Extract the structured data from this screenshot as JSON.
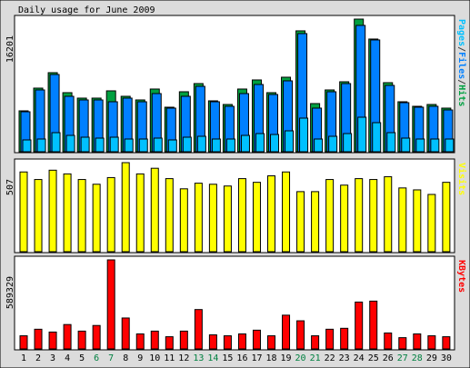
{
  "chart_data": {
    "type": "bar",
    "title": "Daily usage for June 2009",
    "categories": [
      "1",
      "2",
      "3",
      "4",
      "5",
      "6",
      "7",
      "8",
      "9",
      "10",
      "11",
      "12",
      "13",
      "14",
      "15",
      "16",
      "17",
      "18",
      "19",
      "20",
      "21",
      "22",
      "23",
      "24",
      "25",
      "26",
      "27",
      "28",
      "29",
      "30"
    ],
    "category_colors": [
      "#000000",
      "#000000",
      "#000000",
      "#000000",
      "#000000",
      "#008040",
      "#008040",
      "#000000",
      "#000000",
      "#000000",
      "#000000",
      "#000000",
      "#008040",
      "#008040",
      "#000000",
      "#000000",
      "#000000",
      "#000000",
      "#000000",
      "#008040",
      "#008040",
      "#000000",
      "#000000",
      "#000000",
      "#000000",
      "#000000",
      "#008040",
      "#008040",
      "#000000",
      "#000000"
    ],
    "panels": [
      {
        "legend_separator": "/",
        "ylim": [
          0,
          16201
        ],
        "yticks": [
          16201
        ],
        "series": [
          {
            "name": "Pages",
            "color": "#00c0ff",
            "values": [
              1443,
              1554,
              2331,
              1998,
              1776,
              1665,
              1776,
              1554,
              1554,
              1665,
              1443,
              1776,
              1887,
              1554,
              1554,
              1998,
              2220,
              2109,
              2553,
              4107,
              1554,
              1887,
              2220,
              4218,
              3552,
              2331,
              1665,
              1554,
              1554,
              1554
            ]
          },
          {
            "name": "Files",
            "color": "#0080ff",
            "values": [
              4884,
              7548,
              9435,
              6771,
              6327,
              6327,
              6105,
              6549,
              6105,
              7104,
              5328,
              6771,
              7992,
              6105,
              5550,
              7104,
              8214,
              6993,
              8658,
              14430,
              5328,
              7326,
              8325,
              15429,
              13653,
              8103,
              5994,
              5439,
              5550,
              5106
            ]
          },
          {
            "name": "Hits",
            "color": "#00a040",
            "values": [
              4995,
              7770,
              9657,
              7215,
              6549,
              6549,
              7437,
              6771,
              6327,
              7659,
              5439,
              7326,
              8325,
              6216,
              5772,
              7659,
              8769,
              7215,
              9102,
              14763,
              5883,
              7548,
              8547,
              16201,
              13764,
              8436,
              6105,
              5550,
              5772,
              5328
            ]
          }
        ]
      },
      {
        "ylim": [
          0,
          507
        ],
        "yticks": [
          507
        ],
        "series": [
          {
            "name": "Visits",
            "color": "#ffff00",
            "values": [
              454,
              411,
              464,
              443,
              411,
              384,
              422,
              507,
              443,
              475,
              416,
              358,
              390,
              384,
              374,
              416,
              395,
              432,
              454,
              342,
              342,
              411,
              379,
              416,
              411,
              427,
              363,
              352,
              326,
              395
            ]
          }
        ]
      },
      {
        "ylim": [
          0,
          589329
        ],
        "yticks": [
          589329
        ],
        "series": [
          {
            "name": "KBytes",
            "color": "#ff0000",
            "values": [
              86842,
              130263,
              111654,
              161278,
              117857,
              155075,
              589329,
              204699,
              99248,
              117857,
              80639,
              117857,
              260526,
              93045,
              86842,
              99248,
              124060,
              86842,
              223308,
              186090,
              86842,
              130263,
              136466,
              310150,
              316353,
              105451,
              74436,
              99248,
              86842,
              80639
            ]
          }
        ]
      }
    ]
  }
}
